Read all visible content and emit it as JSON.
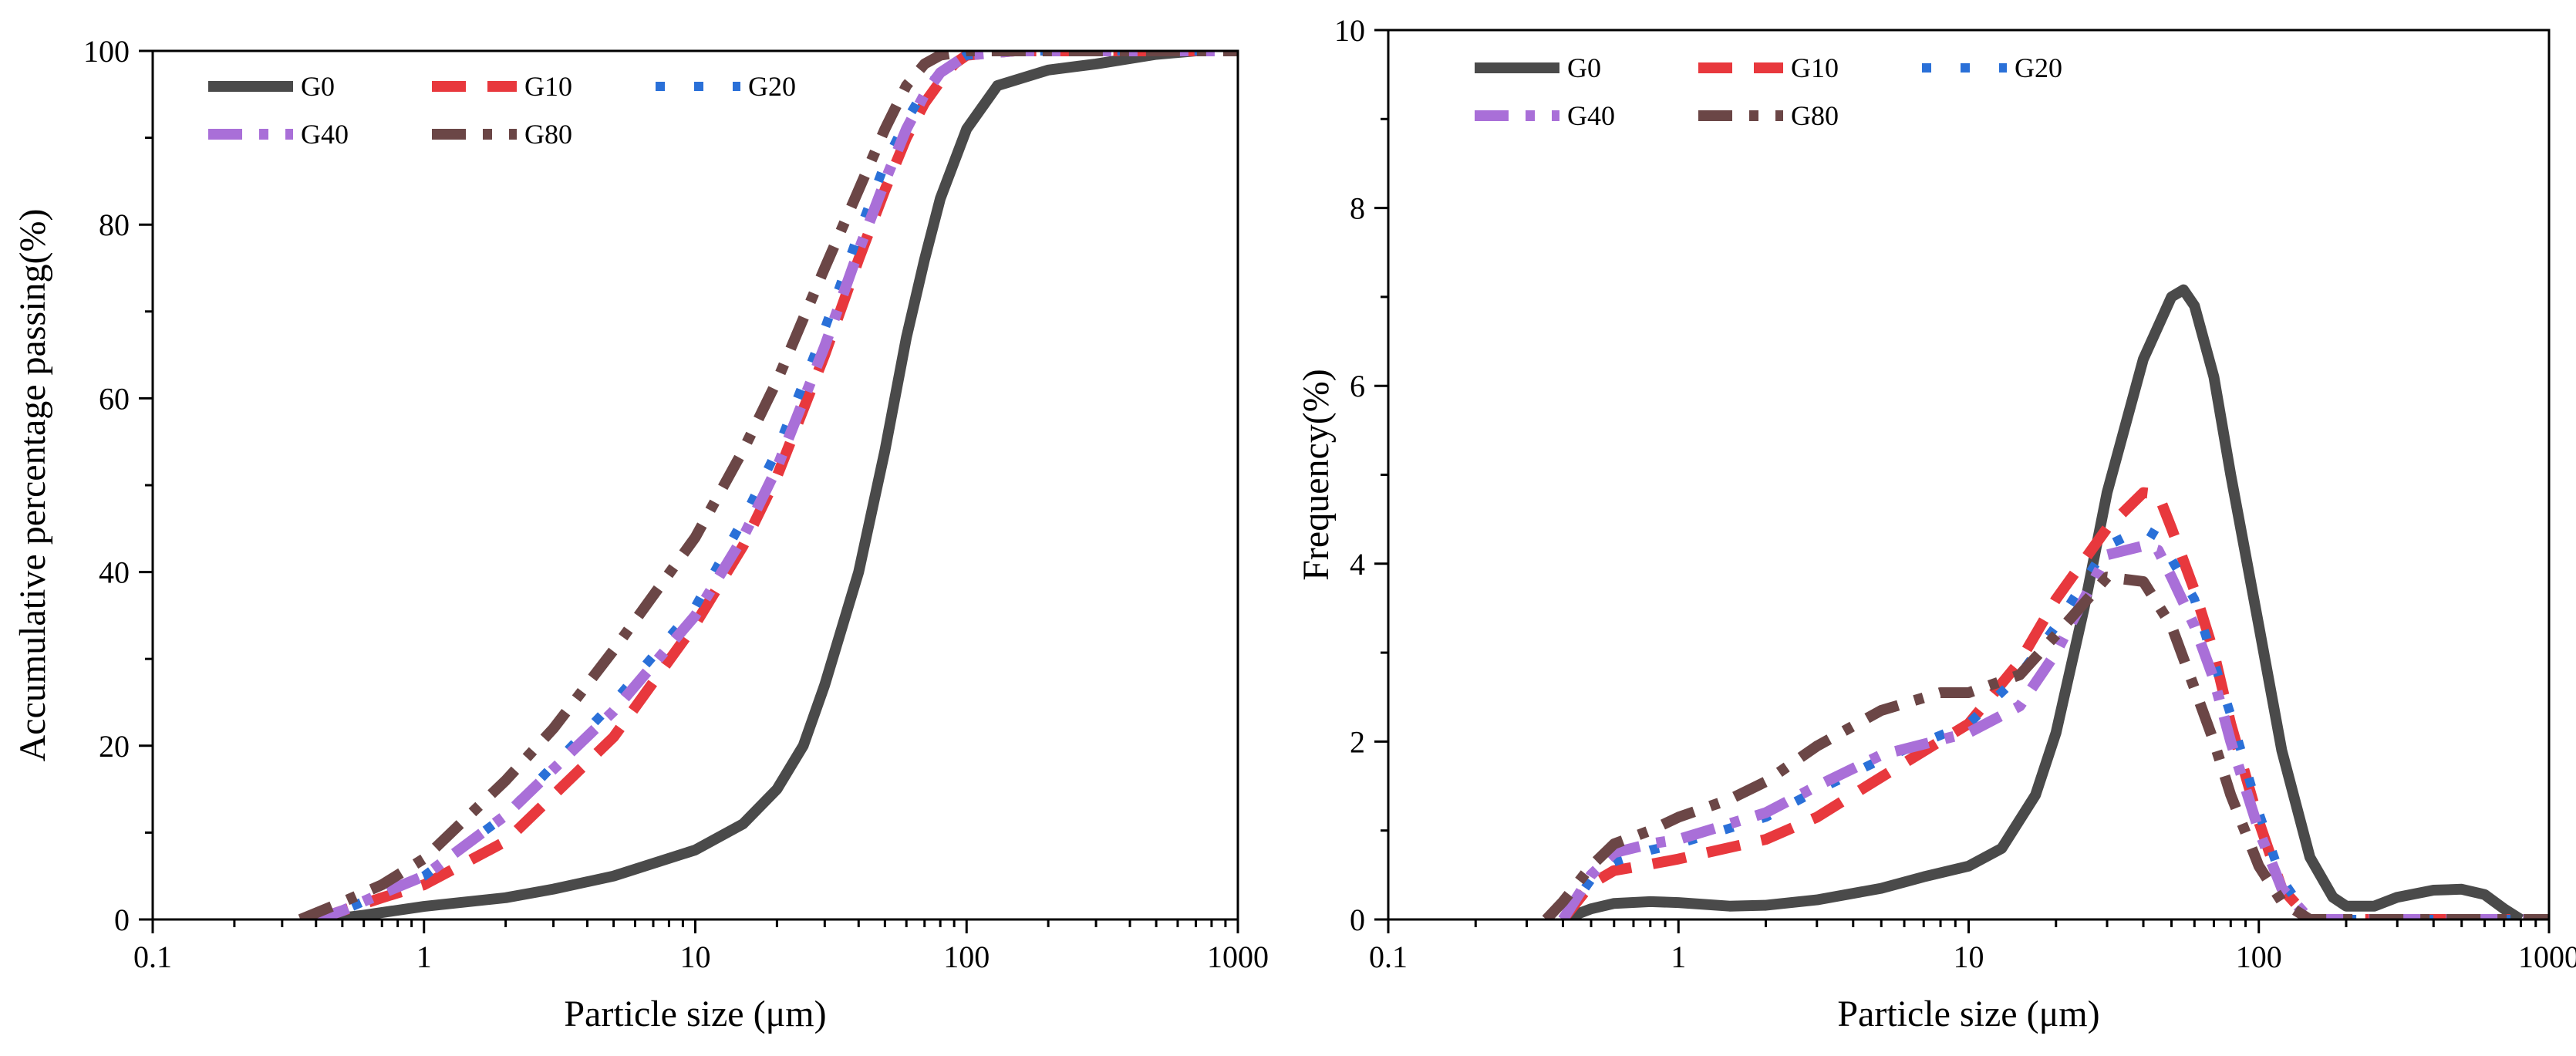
{
  "chart_data": [
    {
      "type": "line",
      "xscale": "log",
      "xlim": [
        0.1,
        1000
      ],
      "ylim": [
        0,
        100
      ],
      "xticks": [
        0.1,
        1,
        10,
        100,
        1000
      ],
      "xtick_labels": [
        "0.1",
        "1",
        "10",
        "100",
        "1000"
      ],
      "yticks": [
        0,
        20,
        40,
        60,
        80,
        100
      ],
      "ytick_labels": [
        "0",
        "20",
        "40",
        "60",
        "80",
        "100"
      ],
      "xlabel": "Particle size (μm)",
      "ylabel": "Accumulative percentage passing(%)",
      "legend": "top-left",
      "series": [
        {
          "name": "G0",
          "color": "#4a4a4a",
          "style": "solid",
          "x": [
            0.45,
            0.6,
            1,
            2,
            3,
            5,
            10,
            15,
            20,
            25,
            30,
            40,
            50,
            60,
            70,
            80,
            100,
            130,
            200,
            300,
            500,
            700
          ],
          "y": [
            0,
            0.5,
            1.5,
            2.5,
            3.5,
            5,
            8,
            11,
            15,
            20,
            27,
            40,
            54,
            67,
            76,
            83,
            91,
            96,
            97.8,
            98.5,
            99.6,
            100
          ]
        },
        {
          "name": "G10",
          "color": "#e8383d",
          "style": "dash",
          "x": [
            0.4,
            0.5,
            0.7,
            1,
            2,
            5,
            10,
            15,
            20,
            30,
            40,
            50,
            60,
            70,
            80,
            90,
            100,
            150,
            300,
            1000
          ],
          "y": [
            0,
            1,
            2.5,
            4,
            9,
            21,
            34,
            43,
            51,
            65,
            76,
            84,
            90,
            94,
            96.5,
            98.5,
            99.5,
            100,
            100,
            100
          ]
        },
        {
          "name": "G20",
          "color": "#2a70d8",
          "style": "dot",
          "x": [
            0.4,
            0.5,
            0.7,
            1,
            2,
            5,
            10,
            15,
            20,
            30,
            40,
            50,
            60,
            70,
            80,
            100,
            150,
            300,
            1000
          ],
          "y": [
            0,
            1,
            3,
            5,
            12,
            25,
            36,
            46,
            54,
            68,
            79,
            87,
            92,
            95.5,
            97.5,
            99.5,
            100,
            100,
            100
          ]
        },
        {
          "name": "G40",
          "color": "#a96fd8",
          "style": "dashdot",
          "x": [
            0.4,
            0.5,
            0.7,
            1,
            2,
            5,
            10,
            15,
            20,
            30,
            40,
            50,
            60,
            70,
            80,
            100,
            150,
            300,
            1000
          ],
          "y": [
            0,
            1,
            3,
            5,
            12,
            24,
            35,
            44,
            52,
            66,
            77,
            85,
            91,
            95,
            97.5,
            99.5,
            100,
            100,
            100
          ]
        },
        {
          "name": "G80",
          "color": "#6b4646",
          "style": "dashdot",
          "x": [
            0.35,
            0.5,
            0.7,
            1,
            2,
            3,
            5,
            10,
            15,
            20,
            30,
            40,
            50,
            60,
            70,
            80,
            100,
            300,
            1000
          ],
          "y": [
            0,
            2,
            4,
            7,
            16,
            22,
            31,
            44,
            54,
            62,
            75,
            84,
            91,
            96,
            98.5,
            99.5,
            100,
            100,
            100
          ]
        }
      ]
    },
    {
      "type": "line",
      "xscale": "log",
      "xlim": [
        0.1,
        1000
      ],
      "ylim": [
        0,
        10
      ],
      "xticks": [
        0.1,
        1,
        10,
        100,
        1000
      ],
      "xtick_labels": [
        "0.1",
        "1",
        "10",
        "100",
        "1000"
      ],
      "yticks": [
        0,
        2,
        4,
        6,
        8,
        10
      ],
      "ytick_labels": [
        "0",
        "2",
        "4",
        "6",
        "8",
        "10"
      ],
      "xlabel": "Particle size (μm)",
      "ylabel": "Frequency(%)",
      "legend": "top-left",
      "series": [
        {
          "name": "G0",
          "color": "#4a4a4a",
          "style": "solid",
          "x": [
            0.4,
            0.5,
            0.6,
            0.8,
            1,
            1.5,
            2,
            3,
            5,
            7,
            10,
            13,
            17,
            20,
            25,
            30,
            40,
            50,
            55,
            60,
            70,
            80,
            100,
            120,
            150,
            180,
            200,
            250,
            300,
            400,
            500,
            600,
            700,
            800
          ],
          "y": [
            0,
            0.12,
            0.18,
            0.2,
            0.19,
            0.15,
            0.16,
            0.22,
            0.35,
            0.48,
            0.6,
            0.8,
            1.4,
            2.1,
            3.5,
            4.8,
            6.3,
            7.0,
            7.08,
            6.9,
            6.1,
            5.0,
            3.3,
            1.9,
            0.7,
            0.25,
            0.15,
            0.15,
            0.25,
            0.33,
            0.34,
            0.28,
            0.12,
            0
          ]
        },
        {
          "name": "G10",
          "color": "#e8383d",
          "style": "dash",
          "x": [
            0.4,
            0.5,
            0.6,
            0.8,
            1,
            2,
            3,
            5,
            10,
            15,
            20,
            30,
            40,
            45,
            50,
            60,
            70,
            80,
            100,
            120,
            150,
            300,
            1000
          ],
          "y": [
            0,
            0.4,
            0.55,
            0.62,
            0.68,
            0.9,
            1.15,
            1.6,
            2.2,
            2.9,
            3.6,
            4.4,
            4.8,
            4.78,
            4.4,
            3.7,
            3.0,
            2.2,
            1.1,
            0.35,
            0,
            0,
            0
          ]
        },
        {
          "name": "G20",
          "color": "#2a70d8",
          "style": "dot",
          "x": [
            0.4,
            0.5,
            0.6,
            0.8,
            1,
            2,
            3,
            5,
            10,
            15,
            20,
            30,
            40,
            45,
            50,
            60,
            70,
            80,
            100,
            120,
            150,
            300,
            1000
          ],
          "y": [
            0,
            0.45,
            0.65,
            0.78,
            0.85,
            1.15,
            1.45,
            1.8,
            2.2,
            2.75,
            3.3,
            4.2,
            4.4,
            4.3,
            4.05,
            3.6,
            2.9,
            2.3,
            1.2,
            0.45,
            0,
            0,
            0
          ]
        },
        {
          "name": "G40",
          "color": "#a96fd8",
          "style": "dashdot",
          "x": [
            0.4,
            0.5,
            0.6,
            0.8,
            1,
            2,
            3,
            5,
            10,
            15,
            20,
            30,
            40,
            45,
            50,
            60,
            70,
            80,
            100,
            120,
            150,
            300,
            1000
          ],
          "y": [
            0,
            0.5,
            0.75,
            0.85,
            0.9,
            1.2,
            1.5,
            1.85,
            2.1,
            2.4,
            3.0,
            4.1,
            4.2,
            4.15,
            3.85,
            3.3,
            2.7,
            2.0,
            1.0,
            0.35,
            0,
            0,
            0
          ]
        },
        {
          "name": "G80",
          "color": "#6b4646",
          "style": "dashdot",
          "x": [
            0.35,
            0.4,
            0.5,
            0.6,
            0.8,
            1,
            1.5,
            2,
            3,
            5,
            8,
            10,
            15,
            20,
            30,
            40,
            50,
            60,
            70,
            80,
            100,
            120,
            150,
            300,
            1000
          ],
          "y": [
            0,
            0.2,
            0.6,
            0.85,
            1.0,
            1.15,
            1.35,
            1.55,
            1.95,
            2.35,
            2.55,
            2.55,
            2.75,
            3.2,
            3.85,
            3.8,
            3.3,
            2.6,
            2.0,
            1.4,
            0.6,
            0.2,
            0,
            0,
            0
          ]
        }
      ]
    }
  ]
}
